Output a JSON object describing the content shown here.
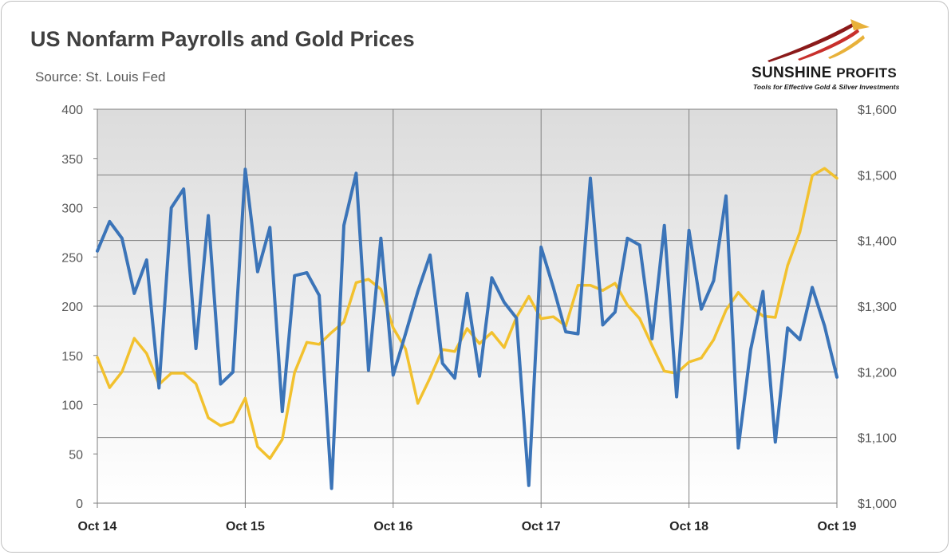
{
  "header": {
    "title": "US Nonfarm Payrolls and Gold Prices",
    "source": "Source: St. Louis Fed"
  },
  "logo": {
    "name_main": "SUNSHINE",
    "name_second": "PROFITS",
    "tagline": "Tools for Effective Gold & Silver Investments",
    "colors": {
      "dark_red": "#8b1a1a",
      "red": "#c8302c",
      "gold": "#e8b13a"
    }
  },
  "colors": {
    "payrolls": "#3b74b8",
    "gold": "#f2c12e",
    "grid": "#7f7f7f",
    "plot_bg_top": "#dcdcdc",
    "plot_bg_bottom": "#ffffff"
  },
  "chart_data": {
    "type": "line",
    "title": "US Nonfarm Payrolls and Gold Prices",
    "x_ticks": [
      "Oct 14",
      "Oct 15",
      "Oct 16",
      "Oct 17",
      "Oct 18",
      "Oct 19"
    ],
    "x_range": [
      "2014-10",
      "2019-10"
    ],
    "y_left": {
      "min": 0,
      "max": 400,
      "ticks": [
        "0",
        "50",
        "100",
        "150",
        "200",
        "250",
        "300",
        "350",
        "400"
      ]
    },
    "y_right": {
      "min": 1000,
      "max": 1600,
      "ticks": [
        "$1,000",
        "$1,100",
        "$1,200",
        "$1,300",
        "$1,400",
        "$1,500",
        "$1,600"
      ]
    },
    "grid": true,
    "legend": "none",
    "series": [
      {
        "axis": "left",
        "values": [
          256,
          286,
          269,
          213,
          247,
          117,
          300,
          319,
          157,
          292,
          121,
          133,
          339,
          235,
          280,
          93,
          231,
          234,
          211,
          15,
          282,
          335,
          135,
          269,
          130,
          172,
          215,
          252,
          142,
          127,
          213,
          129,
          229,
          204,
          188,
          18,
          260,
          219,
          174,
          172,
          330,
          181,
          194,
          269,
          262,
          167,
          282,
          108,
          277,
          197,
          226,
          312,
          56,
          156,
          215,
          62,
          178,
          166,
          219,
          180,
          128
        ]
      },
      {
        "axis": "right",
        "values": [
          1222,
          1176,
          1200,
          1251,
          1228,
          1181,
          1198,
          1198,
          1182,
          1130,
          1118,
          1124,
          1160,
          1086,
          1068,
          1097,
          1199,
          1245,
          1242,
          1260,
          1276,
          1336,
          1341,
          1326,
          1267,
          1235,
          1152,
          1191,
          1234,
          1231,
          1266,
          1243,
          1260,
          1237,
          1283,
          1315,
          1281,
          1284,
          1270,
          1332,
          1332,
          1324,
          1335,
          1302,
          1281,
          1240,
          1201,
          1198,
          1215,
          1221,
          1249,
          1294,
          1321,
          1300,
          1285,
          1283,
          1362,
          1413,
          1499,
          1510,
          1495
        ]
      }
    ]
  }
}
